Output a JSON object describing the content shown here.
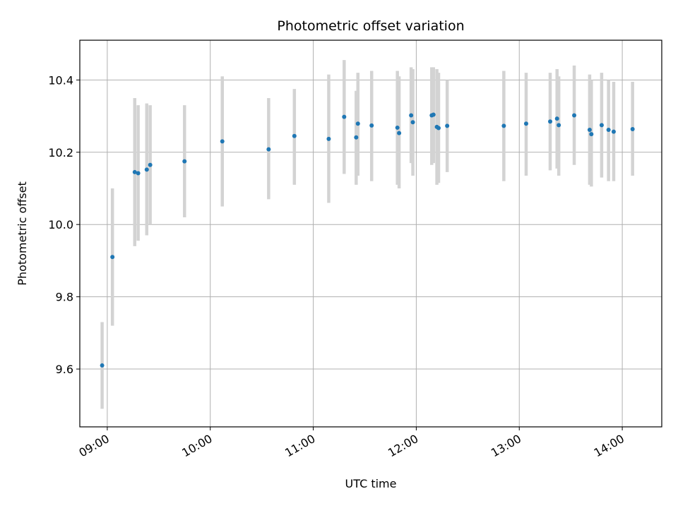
{
  "chart_data": {
    "type": "scatter",
    "title": "Photometric offset variation",
    "xlabel": "UTC time",
    "ylabel": "Photometric offset",
    "xlim": [
      "08:44",
      "14:23"
    ],
    "ylim": [
      9.44,
      10.51
    ],
    "x_ticks": [
      "09:00",
      "10:00",
      "11:00",
      "12:00",
      "13:00",
      "14:00"
    ],
    "y_ticks": [
      "9.6",
      "9.8",
      "10.0",
      "10.2",
      "10.4"
    ],
    "grid": true,
    "colors": {
      "point": "#1f77b4",
      "errorbar": "#d3d3d3",
      "grid": "#b0b0b0"
    },
    "points": [
      {
        "x": "08:57",
        "y": 9.61,
        "ylow": 9.49,
        "yhigh": 9.73
      },
      {
        "x": "09:03",
        "y": 9.91,
        "ylow": 9.72,
        "yhigh": 10.1
      },
      {
        "x": "09:16",
        "y": 10.145,
        "ylow": 9.94,
        "yhigh": 10.35
      },
      {
        "x": "09:18",
        "y": 10.142,
        "ylow": 9.955,
        "yhigh": 10.33
      },
      {
        "x": "09:23",
        "y": 10.152,
        "ylow": 9.97,
        "yhigh": 10.335
      },
      {
        "x": "09:25",
        "y": 10.165,
        "ylow": 10.0,
        "yhigh": 10.33
      },
      {
        "x": "09:45",
        "y": 10.175,
        "ylow": 10.02,
        "yhigh": 10.33
      },
      {
        "x": "10:07",
        "y": 10.23,
        "ylow": 10.05,
        "yhigh": 10.41
      },
      {
        "x": "10:34",
        "y": 10.208,
        "ylow": 10.07,
        "yhigh": 10.35
      },
      {
        "x": "10:49",
        "y": 10.245,
        "ylow": 10.11,
        "yhigh": 10.375
      },
      {
        "x": "11:09",
        "y": 10.237,
        "ylow": 10.06,
        "yhigh": 10.415
      },
      {
        "x": "11:18",
        "y": 10.298,
        "ylow": 10.14,
        "yhigh": 10.455
      },
      {
        "x": "11:25",
        "y": 10.241,
        "ylow": 10.11,
        "yhigh": 10.37
      },
      {
        "x": "11:26",
        "y": 10.279,
        "ylow": 10.135,
        "yhigh": 10.42
      },
      {
        "x": "11:34",
        "y": 10.274,
        "ylow": 10.12,
        "yhigh": 10.425
      },
      {
        "x": "11:49",
        "y": 10.268,
        "ylow": 10.11,
        "yhigh": 10.425
      },
      {
        "x": "11:50",
        "y": 10.253,
        "ylow": 10.1,
        "yhigh": 10.41
      },
      {
        "x": "11:57",
        "y": 10.302,
        "ylow": 10.17,
        "yhigh": 10.435
      },
      {
        "x": "11:58",
        "y": 10.283,
        "ylow": 10.135,
        "yhigh": 10.43
      },
      {
        "x": "12:09",
        "y": 10.302,
        "ylow": 10.165,
        "yhigh": 10.435
      },
      {
        "x": "12:10",
        "y": 10.304,
        "ylow": 10.17,
        "yhigh": 10.435
      },
      {
        "x": "12:12",
        "y": 10.27,
        "ylow": 10.11,
        "yhigh": 10.43
      },
      {
        "x": "12:13",
        "y": 10.267,
        "ylow": 10.115,
        "yhigh": 10.42
      },
      {
        "x": "12:18",
        "y": 10.273,
        "ylow": 10.145,
        "yhigh": 10.4
      },
      {
        "x": "12:51",
        "y": 10.273,
        "ylow": 10.12,
        "yhigh": 10.425
      },
      {
        "x": "13:04",
        "y": 10.279,
        "ylow": 10.135,
        "yhigh": 10.42
      },
      {
        "x": "13:18",
        "y": 10.285,
        "ylow": 10.15,
        "yhigh": 10.42
      },
      {
        "x": "13:22",
        "y": 10.293,
        "ylow": 10.155,
        "yhigh": 10.43
      },
      {
        "x": "13:23",
        "y": 10.275,
        "ylow": 10.135,
        "yhigh": 10.41
      },
      {
        "x": "13:32",
        "y": 10.302,
        "ylow": 10.165,
        "yhigh": 10.44
      },
      {
        "x": "13:41",
        "y": 10.262,
        "ylow": 10.11,
        "yhigh": 10.415
      },
      {
        "x": "13:42",
        "y": 10.25,
        "ylow": 10.105,
        "yhigh": 10.4
      },
      {
        "x": "13:48",
        "y": 10.275,
        "ylow": 10.13,
        "yhigh": 10.42
      },
      {
        "x": "13:52",
        "y": 10.262,
        "ylow": 10.12,
        "yhigh": 10.4
      },
      {
        "x": "13:55",
        "y": 10.257,
        "ylow": 10.12,
        "yhigh": 10.395
      },
      {
        "x": "14:06",
        "y": 10.264,
        "ylow": 10.135,
        "yhigh": 10.395
      }
    ]
  }
}
